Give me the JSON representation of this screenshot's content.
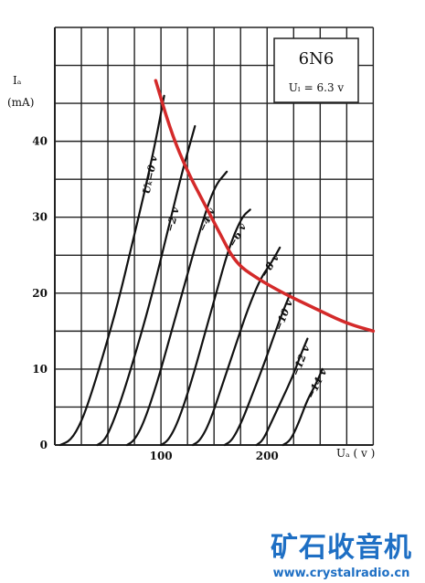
{
  "chart_data": {
    "type": "line",
    "title": "6N6",
    "subtitle": "Uₗ = 6.3 v",
    "ylabel_line1": "Iₐ",
    "ylabel_line2": "(mA)",
    "xlabel": "Uₐ ( v )",
    "xlim": [
      0,
      310
    ],
    "ylim": [
      0,
      55
    ],
    "x_ticks": [
      100,
      200
    ],
    "y_ticks": [
      0,
      10,
      20,
      30,
      40
    ],
    "grid": true,
    "series": [
      {
        "name": "Uₖ=0 v",
        "points": [
          [
            5,
            0
          ],
          [
            15,
            0.6
          ],
          [
            25,
            3
          ],
          [
            35,
            7
          ],
          [
            48,
            13
          ],
          [
            60,
            19
          ],
          [
            72,
            26
          ],
          [
            84,
            33
          ],
          [
            95,
            40
          ],
          [
            103,
            46
          ]
        ]
      },
      {
        "name": "−2 v",
        "points": [
          [
            40,
            0
          ],
          [
            47,
            0.6
          ],
          [
            55,
            3
          ],
          [
            65,
            7
          ],
          [
            78,
            13
          ],
          [
            92,
            20
          ],
          [
            106,
            28
          ],
          [
            120,
            36
          ],
          [
            132,
            42
          ]
        ]
      },
      {
        "name": "−4 v",
        "points": [
          [
            68,
            0
          ],
          [
            75,
            0.6
          ],
          [
            84,
            3
          ],
          [
            96,
            8
          ],
          [
            108,
            14
          ],
          [
            122,
            21
          ],
          [
            136,
            28
          ],
          [
            150,
            34
          ],
          [
            162,
            36
          ]
        ]
      },
      {
        "name": "−6 v",
        "points": [
          [
            100,
            0
          ],
          [
            107,
            0.6
          ],
          [
            116,
            3
          ],
          [
            128,
            8
          ],
          [
            140,
            14
          ],
          [
            152,
            20
          ],
          [
            164,
            26
          ],
          [
            176,
            30
          ],
          [
            184,
            31
          ]
        ]
      },
      {
        "name": "−8 v",
        "points": [
          [
            130,
            0
          ],
          [
            137,
            0.6
          ],
          [
            146,
            3
          ],
          [
            158,
            8
          ],
          [
            170,
            13
          ],
          [
            182,
            18
          ],
          [
            194,
            22
          ],
          [
            204,
            24
          ],
          [
            212,
            26
          ]
        ]
      },
      {
        "name": "−10 v",
        "points": [
          [
            160,
            0
          ],
          [
            167,
            0.6
          ],
          [
            176,
            3
          ],
          [
            187,
            7
          ],
          [
            198,
            11
          ],
          [
            208,
            15
          ],
          [
            216,
            18
          ],
          [
            222,
            20
          ]
        ]
      },
      {
        "name": "−12 v",
        "points": [
          [
            190,
            0
          ],
          [
            196,
            0.6
          ],
          [
            204,
            3
          ],
          [
            214,
            6
          ],
          [
            224,
            9
          ],
          [
            232,
            12
          ],
          [
            238,
            14
          ]
        ]
      },
      {
        "name": "−14 v",
        "points": [
          [
            215,
            0
          ],
          [
            222,
            0.6
          ],
          [
            230,
            3
          ],
          [
            238,
            6
          ],
          [
            246,
            8
          ],
          [
            252,
            10
          ]
        ]
      }
    ],
    "load_line": [
      [
        95,
        48
      ],
      [
        110,
        41
      ],
      [
        125,
        36
      ],
      [
        140,
        32
      ],
      [
        155,
        28
      ],
      [
        170,
        24
      ],
      [
        190,
        22
      ],
      [
        215,
        20
      ],
      [
        245,
        18
      ],
      [
        275,
        16
      ],
      [
        300,
        15
      ]
    ]
  },
  "watermark": {
    "title": "矿石收音机",
    "url": "www.crystalradio.cn"
  },
  "colors": {
    "grid": "#222222",
    "curve": "#111111",
    "load_line": "#d42a2a",
    "watermark": "#1e6fc4"
  }
}
